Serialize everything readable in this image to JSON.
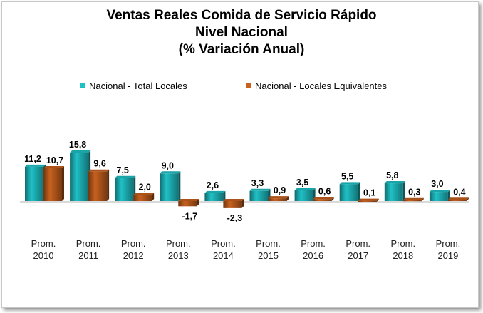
{
  "chart_data": {
    "type": "bar",
    "title_lines": [
      "Ventas Reales Comida de Servicio Rápido",
      "Nivel Nacional",
      "(%  Variación Anual)"
    ],
    "categories": [
      [
        "Prom.",
        "2010"
      ],
      [
        "Prom.",
        "2011"
      ],
      [
        "Prom.",
        "2012"
      ],
      [
        "Prom.",
        "2013"
      ],
      [
        "Prom.",
        "2014"
      ],
      [
        "Prom.",
        "2015"
      ],
      [
        "Prom.",
        "2016"
      ],
      [
        "Prom.",
        "2017"
      ],
      [
        "Prom.",
        "2018"
      ],
      [
        "Prom.",
        "2019"
      ]
    ],
    "series": [
      {
        "name": "Nacional - Total Locales",
        "color": "#1fc1c6",
        "values": [
          11.2,
          15.8,
          7.5,
          9.0,
          2.6,
          3.3,
          3.5,
          5.5,
          5.8,
          3.0
        ],
        "labels": [
          "11,2",
          "15,8",
          "7,5",
          "9,0",
          "2,6",
          "3,3",
          "3,5",
          "5,5",
          "5,8",
          "3,0"
        ]
      },
      {
        "name": "Nacional - Locales Equivalentes",
        "color": "#c8611e",
        "values": [
          10.7,
          9.6,
          2.0,
          -1.7,
          -2.3,
          0.9,
          0.6,
          0.1,
          0.3,
          0.4
        ],
        "labels": [
          "10,7",
          "9,6",
          "2,0",
          "-1,7",
          "-2,3",
          "0,9",
          "0,6",
          "0,1",
          "0,3",
          "0,4"
        ]
      }
    ],
    "legend_position": "top",
    "grid": false,
    "ylim": [
      -4,
      18
    ]
  }
}
